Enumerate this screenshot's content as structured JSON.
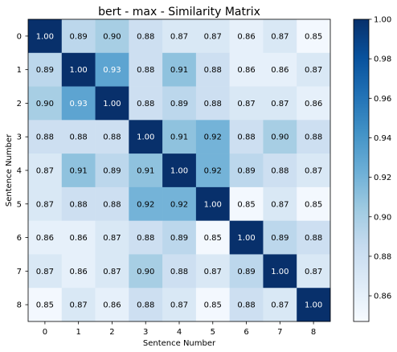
{
  "chart_data": {
    "type": "heatmap",
    "title": "bert - max - Similarity Matrix",
    "xlabel": "Sentence Number",
    "ylabel": "Sentence Number",
    "x_categories": [
      "0",
      "1",
      "2",
      "3",
      "4",
      "5",
      "6",
      "7",
      "8"
    ],
    "y_categories": [
      "0",
      "1",
      "2",
      "3",
      "4",
      "5",
      "6",
      "7",
      "8"
    ],
    "values": [
      [
        1.0,
        0.89,
        0.9,
        0.88,
        0.87,
        0.87,
        0.86,
        0.87,
        0.85
      ],
      [
        0.89,
        1.0,
        0.93,
        0.88,
        0.91,
        0.88,
        0.86,
        0.86,
        0.87
      ],
      [
        0.9,
        0.93,
        1.0,
        0.88,
        0.89,
        0.88,
        0.87,
        0.87,
        0.86
      ],
      [
        0.88,
        0.88,
        0.88,
        1.0,
        0.91,
        0.92,
        0.88,
        0.9,
        0.88
      ],
      [
        0.87,
        0.91,
        0.89,
        0.91,
        1.0,
        0.92,
        0.89,
        0.88,
        0.87
      ],
      [
        0.87,
        0.88,
        0.88,
        0.92,
        0.92,
        1.0,
        0.85,
        0.87,
        0.85
      ],
      [
        0.86,
        0.86,
        0.87,
        0.88,
        0.89,
        0.85,
        1.0,
        0.89,
        0.88
      ],
      [
        0.87,
        0.86,
        0.87,
        0.9,
        0.88,
        0.87,
        0.89,
        1.0,
        0.87
      ],
      [
        0.85,
        0.87,
        0.86,
        0.88,
        0.87,
        0.85,
        0.88,
        0.87,
        1.0
      ]
    ],
    "colormap": "Blues",
    "color_range": [
      0.847,
      1.0
    ],
    "colorbar_ticks": [
      "0.86",
      "0.88",
      "0.90",
      "0.92",
      "0.94",
      "0.96",
      "0.98",
      "1.00"
    ],
    "colorbar_tick_values": [
      0.86,
      0.88,
      0.9,
      0.92,
      0.94,
      0.96,
      0.98,
      1.0
    ]
  }
}
